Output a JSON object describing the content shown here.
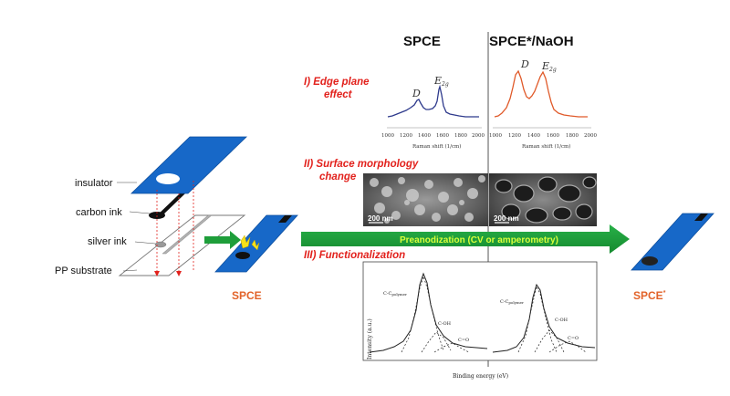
{
  "headers": {
    "left": "SPCE",
    "right": "SPCE*/NaOH"
  },
  "sections": {
    "edge_line1": "I) Edge plane",
    "edge_line2": "effect",
    "morph_line1": "II) Surface morphology",
    "morph_line2": "change",
    "func": "III) Functionalization"
  },
  "raman": {
    "x_ticks": [
      "1000",
      "1200",
      "1400",
      "1600",
      "1800",
      "2000"
    ],
    "xlabel": "Raman shift (1/cm)",
    "peak_d": "D",
    "peak_e": "E",
    "peak_e_sub": "2g"
  },
  "sem": {
    "scale_left": "200 nm",
    "scale_right": "200 nm"
  },
  "arrow": {
    "text1": "Preanodization",
    "text2": " (CV or amperometry)"
  },
  "layers": {
    "insulator": "insulator",
    "carbon": "carbon ink",
    "silver": "silver ink",
    "pp": "PP substrate"
  },
  "products": {
    "spce": "SPCE",
    "spce_star": "SPCE",
    "star": "*"
  },
  "xps": {
    "ylabel": "Intensity (a.u.)",
    "xlabel": "Binding energy (eV)",
    "left_peak1": "C-C",
    "left_peak1_sub": "polymer",
    "left_peak2": "C-OH",
    "left_peak3": "C=O",
    "right_peak1": "C-C",
    "right_peak1_sub": "polymer",
    "right_peak2": "C-OH",
    "right_peak3": "C=O"
  },
  "colors": {
    "blue_strip": "#1768c8",
    "arrow_green": "#1e9e3a",
    "accent_red": "#e2211c",
    "accent_orange": "#e2632a",
    "raman_left": "#2e3a8c",
    "raman_right": "#e05a2a"
  }
}
